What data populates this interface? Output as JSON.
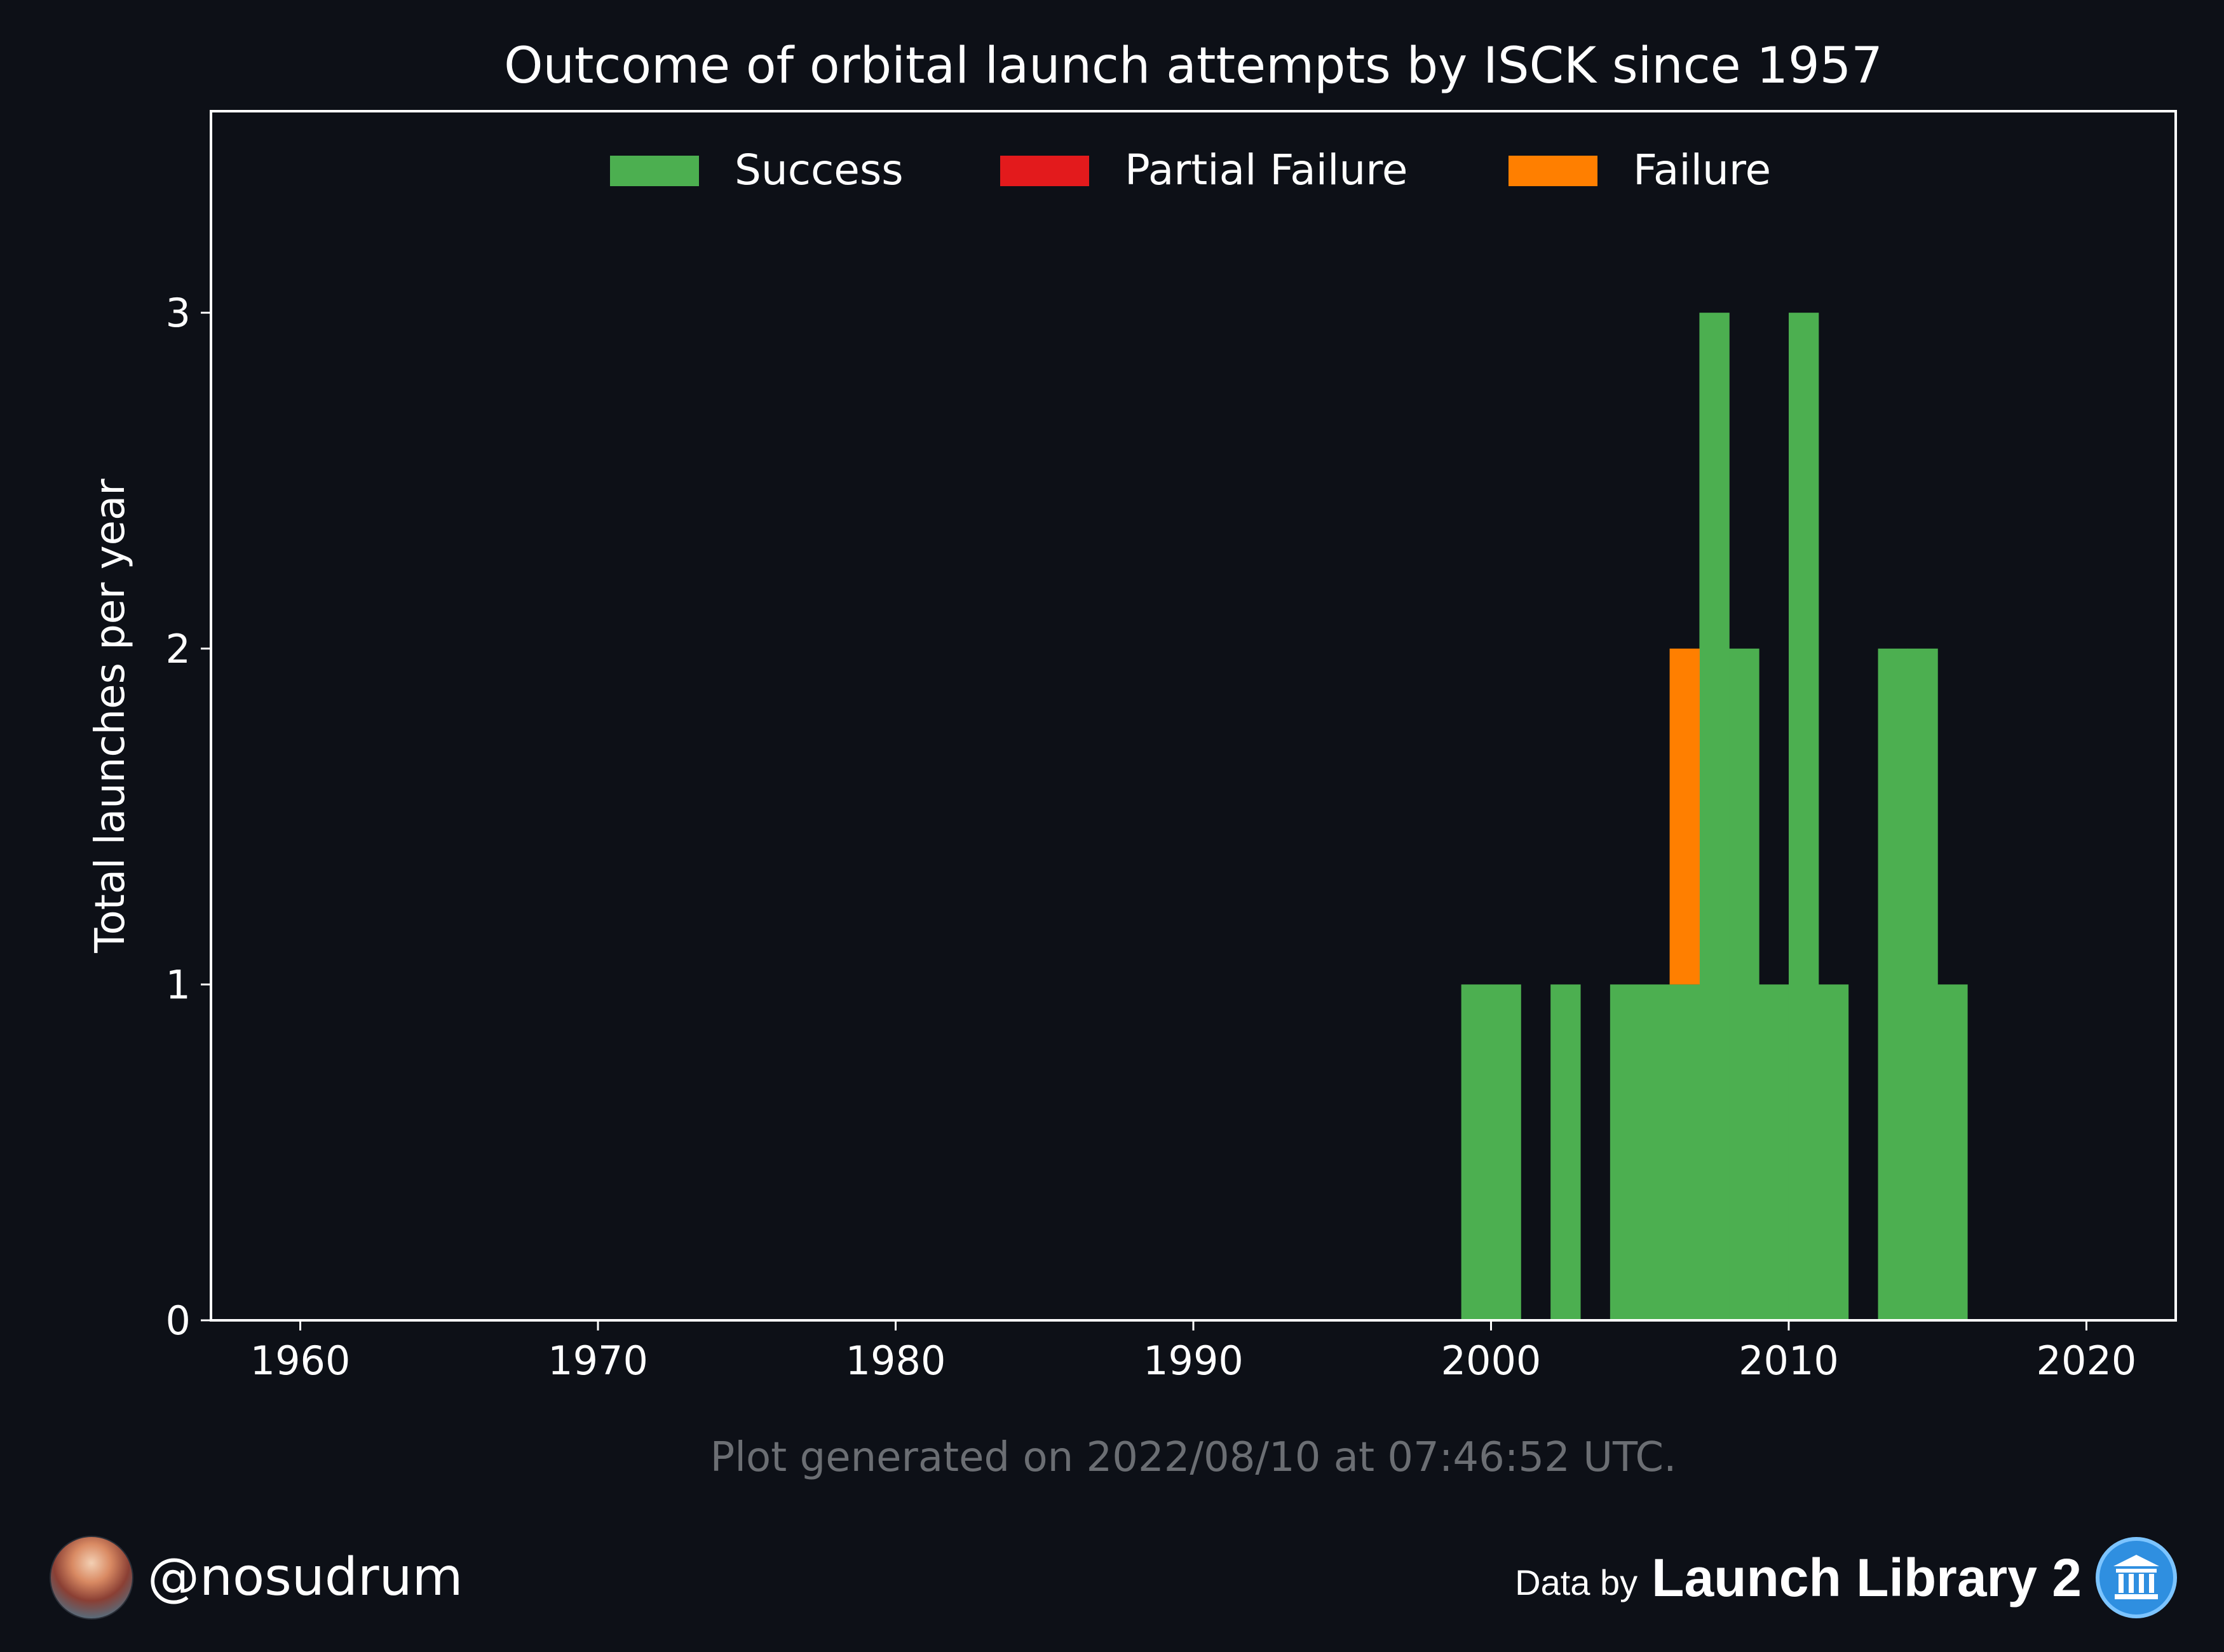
{
  "chart_data": {
    "type": "bar",
    "stacked": true,
    "title": "Outcome of orbital launch attempts by ISCK since 1957",
    "xlabel": "",
    "ylabel": "Total launches per year",
    "xlim": [
      1957,
      2023
    ],
    "ylim": [
      0,
      3.6
    ],
    "xticks": [
      1960,
      1970,
      1980,
      1990,
      2000,
      2010,
      2020
    ],
    "yticks": [
      0,
      1,
      2,
      3
    ],
    "legend_position": "top-center",
    "grid": false,
    "years": [
      1999,
      2000,
      2002,
      2004,
      2005,
      2006,
      2007,
      2008,
      2009,
      2010,
      2011,
      2013,
      2014,
      2015
    ],
    "series": [
      {
        "name": "Success",
        "color": "#4caf50",
        "values": [
          1,
          1,
          1,
          1,
          1,
          1,
          3,
          2,
          1,
          3,
          1,
          2,
          2,
          1
        ]
      },
      {
        "name": "Partial Failure",
        "color": "#e31a1c",
        "values": [
          0,
          0,
          0,
          0,
          0,
          0,
          0,
          0,
          0,
          0,
          0,
          0,
          0,
          0
        ]
      },
      {
        "name": "Failure",
        "color": "#ff7f00",
        "values": [
          0,
          0,
          0,
          0,
          0,
          1,
          0,
          0,
          0,
          0,
          0,
          0,
          0,
          0
        ]
      }
    ],
    "footnote": "Plot generated on 2022/08/10 at 07:46:52 UTC."
  },
  "footer": {
    "handle": "@nosudrum",
    "data_by": "Data by",
    "source": "Launch Library 2"
  },
  "colors": {
    "background": "#0d1017",
    "axes": "#ffffff",
    "footnote": "#6b6e73"
  },
  "icons": {
    "avatar": "astronaut-avatar-icon",
    "source_logo": "launch-library-logo-icon"
  }
}
